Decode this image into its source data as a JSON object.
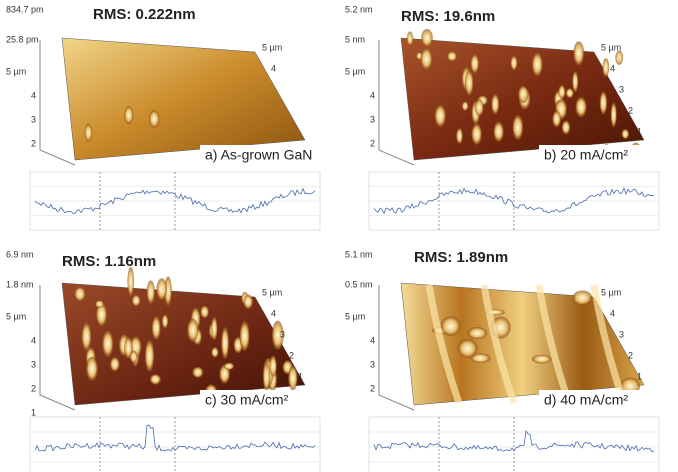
{
  "panels": [
    {
      "rms": "RMS: 0.222nm",
      "label": "a) As-grown GaN",
      "z_top": "834.7 pm",
      "z_bottom": "25.8 pm",
      "left_axis": [
        "5 µm",
        "4",
        "3",
        "2"
      ],
      "right_axis": [
        "5 µm",
        "4"
      ]
    },
    {
      "rms": "RMS: 19.6nm",
      "label": "b) 20 mA/cm²",
      "z_top": "5.2 nm",
      "z_bottom": "5 nm",
      "left_axis": [
        "5 µm",
        "4",
        "3",
        "2"
      ],
      "right_axis": [
        "5 µm",
        "4",
        "3",
        "2",
        "1"
      ]
    },
    {
      "rms": "RMS: 1.16nm",
      "label": "c) 30 mA/cm²",
      "z_top": "6.9 nm",
      "z_bottom": "1.8 nm",
      "left_axis": [
        "5 µm",
        "4",
        "3",
        "2",
        "1"
      ],
      "right_axis": [
        "5 µm",
        "4",
        "3",
        "2",
        "1"
      ]
    },
    {
      "rms": "RMS: 1.89nm",
      "label": "d) 40 mA/cm²",
      "z_top": "5.1 nm",
      "z_bottom": "0.5 nm",
      "left_axis": [
        "5 µm",
        "4",
        "3",
        "2"
      ],
      "right_axis": [
        "5 µm",
        "4",
        "3",
        "2",
        "1"
      ]
    }
  ]
}
